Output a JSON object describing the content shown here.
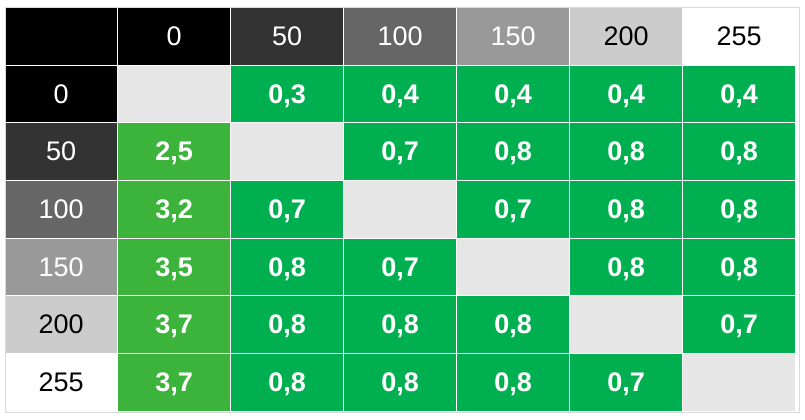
{
  "levels": [
    {
      "label": "0",
      "bg": "#000000",
      "fg": "#ffffff"
    },
    {
      "label": "50",
      "bg": "#333333",
      "fg": "#ffffff"
    },
    {
      "label": "100",
      "bg": "#666666",
      "fg": "#ffffff"
    },
    {
      "label": "150",
      "bg": "#999999",
      "fg": "#ffffff"
    },
    {
      "label": "200",
      "bg": "#cccccc",
      "fg": "#000000"
    },
    {
      "label": "255",
      "bg": "#ffffff",
      "fg": "#000000"
    }
  ],
  "colors": {
    "green": "#00b050",
    "green_light": "#3cb43c",
    "diagonal": "#e6e6e6"
  },
  "matrix": [
    [
      "",
      "0,3",
      "0,4",
      "0,4",
      "0,4",
      "0,4"
    ],
    [
      "2,5",
      "",
      "0,7",
      "0,8",
      "0,8",
      "0,8"
    ],
    [
      "3,2",
      "0,7",
      "",
      "0,7",
      "0,8",
      "0,8"
    ],
    [
      "3,5",
      "0,8",
      "0,7",
      "",
      "0,8",
      "0,8"
    ],
    [
      "3,7",
      "0,8",
      "0,8",
      "0,8",
      "",
      "0,7"
    ],
    [
      "3,7",
      "0,8",
      "0,8",
      "0,8",
      "0,7",
      ""
    ]
  ]
}
